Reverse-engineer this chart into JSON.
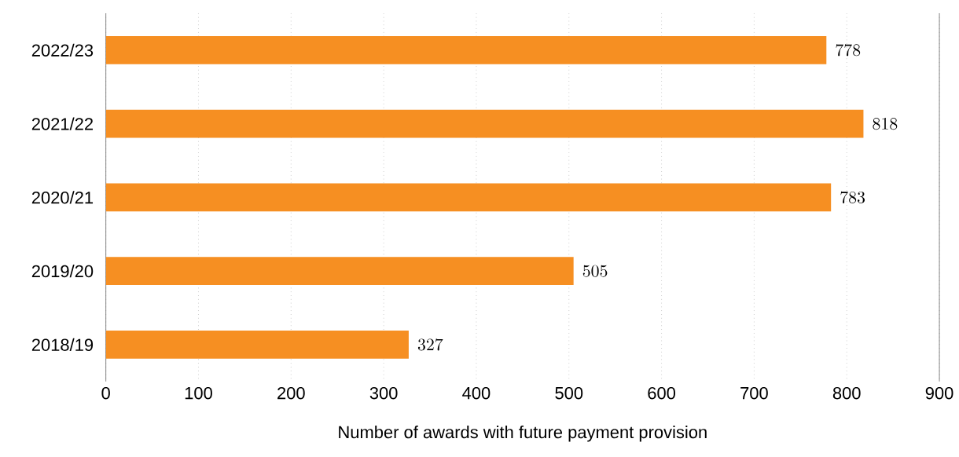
{
  "chart_data": {
    "type": "bar",
    "orientation": "horizontal",
    "categories": [
      "2022/23",
      "2021/22",
      "2020/21",
      "2019/20",
      "2018/19"
    ],
    "values": [
      778,
      818,
      783,
      505,
      327
    ],
    "color": "#f68f22",
    "xlabel": "Number of awards with future payment provision",
    "xlim": [
      0,
      900
    ],
    "xticks": [
      0,
      100,
      200,
      300,
      400,
      500,
      600,
      700,
      800,
      900
    ],
    "grid": "x",
    "data_labels": true
  }
}
